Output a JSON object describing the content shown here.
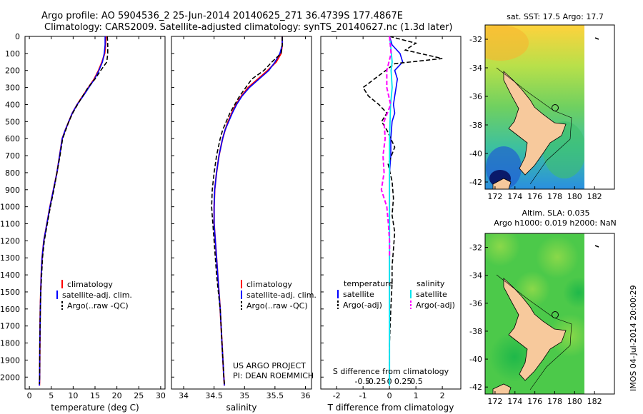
{
  "header": {
    "line1": "Argo profile: AO 5904536_2 25-Jun-2014 20140625_271 36.4739S 177.4867E",
    "line2": "Climatology: CARS2009. Satellite-adjusted climatology: synTS_20140627.nc (1.3d later)"
  },
  "colors": {
    "climatology": "#ff0000",
    "satellite": "#0000ff",
    "argo": "#000000",
    "salinity_satellite": "#00e5ee",
    "salinity_argo": "#ff00ff",
    "land": "#f7c99c"
  },
  "chart_data": [
    {
      "type": "line",
      "name": "temperature",
      "xlabel": "temperature (deg C)",
      "ylabel": "",
      "xlim": [
        -1,
        31
      ],
      "ylim": [
        2070,
        0
      ],
      "xticks": [
        "0",
        "5",
        "10",
        "15",
        "20",
        "25",
        "30"
      ],
      "xtick_values": [
        0,
        5,
        10,
        15,
        20,
        25,
        30
      ],
      "yticks": [
        "0",
        "100",
        "200",
        "300",
        "400",
        "500",
        "600",
        "700",
        "800",
        "900",
        "1000",
        "1100",
        "1200",
        "1300",
        "1400",
        "1500",
        "1600",
        "1700",
        "1800",
        "1900",
        "2000"
      ],
      "legend": [
        "climatology",
        "satellite-adj. clim.",
        "Argo(..raw -QC)"
      ],
      "series": [
        {
          "name": "climatology",
          "x": [
            17.5,
            17.4,
            17.2,
            16.6,
            15.8,
            14.8,
            13.5,
            12.2,
            10.9,
            9.8,
            9.0,
            8.2,
            7.5,
            6.9,
            6.3,
            5.5,
            4.7,
            4.0,
            3.3,
            2.9,
            2.7,
            2.6,
            2.5,
            2.4,
            2.35,
            2.3
          ],
          "y": [
            0,
            50,
            100,
            150,
            200,
            250,
            300,
            350,
            400,
            450,
            500,
            550,
            600,
            700,
            800,
            900,
            1000,
            1100,
            1200,
            1300,
            1400,
            1500,
            1600,
            1800,
            2000,
            2050
          ]
        },
        {
          "name": "satellite-adj. clim.",
          "x": [
            17.3,
            17.3,
            17.1,
            16.7,
            15.9,
            14.9,
            13.6,
            12.3,
            10.9,
            9.8,
            9.0,
            8.2,
            7.5,
            6.9,
            6.3,
            5.5,
            4.7,
            4.0,
            3.3,
            2.9,
            2.7,
            2.6,
            2.5,
            2.4,
            2.35,
            2.3
          ],
          "y": [
            0,
            50,
            100,
            150,
            200,
            250,
            300,
            350,
            400,
            450,
            500,
            550,
            600,
            700,
            800,
            900,
            1000,
            1100,
            1200,
            1300,
            1400,
            1500,
            1600,
            1800,
            2000,
            2050
          ]
        },
        {
          "name": "Argo(..raw -QC)",
          "x": [
            17.8,
            17.9,
            17.9,
            17.7,
            16.3,
            15.0,
            13.4,
            12.2,
            11.0,
            9.9,
            9.0,
            8.3,
            7.6,
            7.0,
            6.3,
            5.6,
            4.8,
            4.1,
            3.4,
            3.0,
            2.8,
            2.6,
            2.5,
            2.4,
            2.35,
            2.3
          ],
          "y": [
            0,
            50,
            100,
            150,
            200,
            250,
            300,
            350,
            400,
            450,
            500,
            550,
            600,
            700,
            800,
            900,
            1000,
            1100,
            1200,
            1300,
            1400,
            1500,
            1600,
            1800,
            2000,
            2040
          ]
        }
      ]
    },
    {
      "type": "line",
      "name": "salinity",
      "xlabel": "salinity",
      "xlim": [
        33.8,
        36.1
      ],
      "ylim": [
        2070,
        0
      ],
      "xticks": [
        "34",
        "34.5",
        "35",
        "35.5",
        "36"
      ],
      "xtick_values": [
        34,
        34.5,
        35,
        35.5,
        36
      ],
      "legend": [
        "climatology",
        "satellite-adj. clim.",
        "Argo(..raw -QC)"
      ],
      "annotation": [
        "US ARGO PROJECT",
        "PI: DEAN ROEMMICH"
      ],
      "series": [
        {
          "name": "climatology",
          "x": [
            35.62,
            35.62,
            35.6,
            35.52,
            35.38,
            35.22,
            35.06,
            34.95,
            34.86,
            34.79,
            34.73,
            34.68,
            34.64,
            34.58,
            34.54,
            34.51,
            34.5,
            34.5,
            34.52,
            34.54,
            34.56,
            34.58,
            34.6,
            34.63,
            34.66,
            34.67
          ],
          "y": [
            0,
            50,
            100,
            150,
            200,
            250,
            300,
            350,
            400,
            450,
            500,
            550,
            600,
            700,
            800,
            900,
            1000,
            1100,
            1200,
            1300,
            1400,
            1500,
            1600,
            1800,
            2000,
            2050
          ]
        },
        {
          "name": "satellite-adj. clim.",
          "x": [
            35.62,
            35.62,
            35.58,
            35.5,
            35.4,
            35.24,
            35.08,
            34.96,
            34.87,
            34.8,
            34.74,
            34.68,
            34.64,
            34.58,
            34.54,
            34.51,
            34.5,
            34.5,
            34.52,
            34.54,
            34.56,
            34.58,
            34.6,
            34.63,
            34.66,
            34.67
          ],
          "y": [
            0,
            50,
            100,
            150,
            200,
            250,
            300,
            350,
            400,
            450,
            500,
            550,
            600,
            700,
            800,
            900,
            1000,
            1100,
            1200,
            1300,
            1400,
            1500,
            1600,
            1800,
            2000,
            2050
          ]
        },
        {
          "name": "Argo(..raw -QC)",
          "x": [
            35.62,
            35.62,
            35.6,
            35.45,
            35.32,
            35.12,
            35.02,
            34.92,
            34.84,
            34.76,
            34.7,
            34.64,
            34.6,
            34.54,
            34.5,
            34.47,
            34.46,
            34.48,
            34.5,
            34.52,
            34.54,
            34.57,
            34.6,
            34.63,
            34.66,
            34.67
          ],
          "y": [
            0,
            50,
            100,
            150,
            200,
            250,
            300,
            350,
            400,
            450,
            500,
            550,
            600,
            700,
            800,
            900,
            1000,
            1100,
            1200,
            1300,
            1400,
            1500,
            1600,
            1800,
            2000,
            2040
          ]
        }
      ]
    },
    {
      "type": "line",
      "name": "difference",
      "xlabel": "T difference from climatology",
      "xlabel_top": "S difference from climatology",
      "xlim": [
        -2.6,
        2.7
      ],
      "ylim": [
        2070,
        0
      ],
      "xticks": [
        "-2",
        "-1",
        "0",
        "1",
        "2"
      ],
      "xtick_values": [
        -2,
        -1,
        0,
        1,
        2
      ],
      "sticks": [
        "-0.5",
        "-0.25",
        "0",
        "0.25",
        "0.5"
      ],
      "stick_values": [
        -0.5,
        -0.25,
        0,
        0.25,
        0.5
      ],
      "legend_headers": [
        "temperature",
        "salinity"
      ],
      "legend": [
        "satellite",
        "Argo(-adj)",
        "satellite",
        "Argo(-adj)"
      ],
      "series": [
        {
          "name": "T satellite",
          "x": [
            0,
            0.1,
            0.4,
            0.5,
            0.2,
            0.3,
            0.25,
            0.2,
            0.15,
            0.2,
            0.1,
            0.05,
            0.05,
            0,
            0,
            0,
            0,
            0,
            0,
            0,
            0,
            0
          ],
          "y": [
            0,
            50,
            100,
            150,
            200,
            250,
            300,
            350,
            400,
            450,
            500,
            600,
            700,
            800,
            1000,
            1200,
            1400,
            1500,
            1600,
            1800,
            2000,
            2050
          ]
        },
        {
          "name": "T Argo(-adj)",
          "x": [
            0,
            1.0,
            0.6,
            2.0,
            0.2,
            -1.0,
            -0.8,
            -0.4,
            -0.1,
            -0.3,
            -0.1,
            0.2,
            -0.05,
            0.1,
            0.15,
            0.1,
            0.2,
            0.15,
            0.1,
            0.1,
            0.05,
            0,
            0
          ],
          "y": [
            0,
            40,
            80,
            130,
            160,
            300,
            350,
            400,
            450,
            500,
            550,
            650,
            750,
            850,
            950,
            1050,
            1150,
            1250,
            1350,
            1450,
            1600,
            1800,
            2000
          ]
        },
        {
          "name": "S satellite",
          "x": [
            0,
            0.02,
            0.05,
            0.03,
            0.05,
            0.02,
            0.0,
            0.0,
            0,
            0,
            0,
            0
          ],
          "y": [
            0,
            50,
            150,
            200,
            300,
            400,
            600,
            800,
            1000,
            1500,
            2000,
            2050
          ]
        },
        {
          "name": "S Argo(-adj)",
          "x": [
            0,
            0.03,
            -0.05,
            -0.05,
            0.02,
            -0.1,
            -0.08,
            -0.12,
            -0.1,
            -0.15,
            -0.05,
            -0.02,
            0,
            0
          ],
          "y": [
            0,
            100,
            200,
            300,
            400,
            500,
            600,
            700,
            800,
            900,
            1000,
            1100,
            1200,
            1300
          ]
        }
      ]
    },
    {
      "type": "heatmap",
      "name": "sst_map",
      "title": "sat. SST: 17.5 Argo: 17.7",
      "xticks": [
        "172",
        "174",
        "176",
        "178",
        "180",
        "182"
      ],
      "yticks": [
        "-32",
        "-34",
        "-36",
        "-38",
        "-40",
        "-42"
      ],
      "xlim": [
        171,
        184
      ],
      "ylim": [
        -42.5,
        -31
      ],
      "marker": [
        177.49,
        -36.47
      ]
    },
    {
      "type": "heatmap",
      "name": "sla_map",
      "title": "Altim. SLA: 0.035",
      "subtitle": "Argo h1000: 0.019 h2000: NaN",
      "xticks": [
        "172",
        "174",
        "176",
        "178",
        "180",
        "182"
      ],
      "yticks": [
        "-32",
        "-34",
        "-36",
        "-38",
        "-40",
        "-42"
      ],
      "xlim": [
        171,
        184
      ],
      "ylim": [
        -42.5,
        -31
      ],
      "marker": [
        177.49,
        -36.47
      ]
    }
  ],
  "side_label": "IMOS 04-Jul-2014 20:00:29"
}
